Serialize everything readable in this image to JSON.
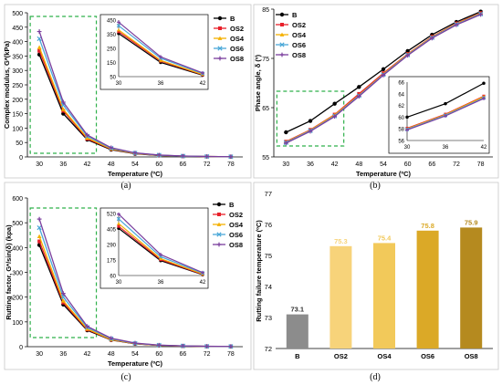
{
  "colors": {
    "B": "#000000",
    "OS2": "#e8202a",
    "OS4": "#f5b000",
    "OS6": "#4aa8d8",
    "OS8": "#7b3f9e",
    "highlight_box": "#2eb04a",
    "bar_B": "#8c8c8c",
    "bar_OS2": "#f7d37a",
    "bar_OS4": "#f2c95a",
    "bar_OS6": "#dba927",
    "bar_OS8": "#b58a1f"
  },
  "legend": [
    "B",
    "OS2",
    "OS4",
    "OS6",
    "OS8"
  ],
  "chart_data": [
    {
      "panel": "(a)",
      "type": "line",
      "x": [
        30,
        36,
        42,
        48,
        54,
        60,
        66,
        72,
        78
      ],
      "xticks": [
        "30",
        "36",
        "42",
        "48",
        "54",
        "60",
        "66",
        "72",
        "78"
      ],
      "xlabel": "Temperature (ºC)",
      "ylabel": "Complex modulus, G*(kPa)",
      "ylim": [
        0,
        500
      ],
      "yticks": [
        "0",
        "50",
        "100",
        "150",
        "200",
        "250",
        "300",
        "350",
        "400",
        "450",
        "500"
      ],
      "series": [
        {
          "name": "B",
          "values": [
            355,
            150,
            60,
            25,
            11,
            5,
            2.5,
            1.3,
            0.7
          ]
        },
        {
          "name": "OS2",
          "values": [
            368,
            160,
            63,
            27,
            12,
            5.5,
            2.7,
            1.4,
            0.8
          ]
        },
        {
          "name": "OS4",
          "values": [
            380,
            165,
            66,
            28,
            12.5,
            5.8,
            2.8,
            1.5,
            0.8
          ]
        },
        {
          "name": "OS6",
          "values": [
            410,
            180,
            72,
            30,
            13.5,
            6.2,
            3,
            1.6,
            0.9
          ]
        },
        {
          "name": "OS8",
          "values": [
            435,
            190,
            76,
            32,
            14,
            6.5,
            3.2,
            1.7,
            0.9
          ]
        }
      ],
      "inset": {
        "x": [
          30,
          36,
          42
        ],
        "xticks": [
          "30",
          "36",
          "42"
        ],
        "ylim": [
          50,
          450
        ],
        "yticks": [
          "50",
          "150",
          "250",
          "350",
          "450"
        ]
      }
    },
    {
      "panel": "(b)",
      "type": "line",
      "x": [
        30,
        36,
        42,
        48,
        54,
        60,
        66,
        72,
        78
      ],
      "xticks": [
        "30",
        "36",
        "42",
        "48",
        "54",
        "60",
        "66",
        "72",
        "78"
      ],
      "xlabel": "Temperature (ºC)",
      "ylabel": "Phase angle, δ (º)",
      "ylim": [
        55,
        85
      ],
      "yticks": [
        "55",
        "65",
        "75",
        "85"
      ],
      "series": [
        {
          "name": "B",
          "values": [
            60,
            62.3,
            65.8,
            69.2,
            72.8,
            76.5,
            79.8,
            82.4,
            84.5
          ]
        },
        {
          "name": "OS2",
          "values": [
            58.1,
            60.5,
            63.6,
            67.8,
            72,
            75.9,
            79.4,
            82.1,
            84.2
          ]
        },
        {
          "name": "OS4",
          "values": [
            58,
            60.4,
            63.5,
            67.5,
            71.8,
            75.8,
            79.3,
            82,
            84.1
          ]
        },
        {
          "name": "OS6",
          "values": [
            57.9,
            60.3,
            63.3,
            67.4,
            71.7,
            75.7,
            79.2,
            81.9,
            84
          ]
        },
        {
          "name": "OS8",
          "values": [
            57.8,
            60.2,
            63.2,
            67.3,
            71.6,
            75.6,
            79.1,
            81.8,
            83.9
          ]
        }
      ],
      "inset": {
        "x": [
          30,
          36,
          42
        ],
        "xticks": [
          "30",
          "36",
          "42"
        ],
        "ylim": [
          56,
          66
        ],
        "yticks": [
          "56",
          "58",
          "60",
          "62",
          "64",
          "66"
        ]
      }
    },
    {
      "panel": "(c)",
      "type": "line",
      "x": [
        30,
        36,
        42,
        48,
        54,
        60,
        66,
        72,
        78
      ],
      "xticks": [
        "30",
        "36",
        "42",
        "48",
        "54",
        "60",
        "66",
        "72",
        "78"
      ],
      "xlabel": "Temperature (ºC)",
      "ylabel": "Rutting factor, G*/sin(δ) (kpa)",
      "ylim": [
        0,
        600
      ],
      "yticks": [
        "0",
        "100",
        "200",
        "300",
        "400",
        "500",
        "600"
      ],
      "series": [
        {
          "name": "B",
          "values": [
            410,
            170,
            66,
            27,
            11.5,
            5,
            2.5,
            1.3,
            0.7
          ]
        },
        {
          "name": "OS2",
          "values": [
            425,
            178,
            69,
            28,
            12,
            5.3,
            2.6,
            1.4,
            0.8
          ]
        },
        {
          "name": "OS4",
          "values": [
            445,
            185,
            72,
            29,
            12.5,
            5.6,
            2.7,
            1.4,
            0.8
          ]
        },
        {
          "name": "OS6",
          "values": [
            480,
            200,
            78,
            32,
            13.5,
            6,
            3,
            1.5,
            0.9
          ]
        },
        {
          "name": "OS8",
          "values": [
            515,
            215,
            82,
            34,
            14.5,
            6.4,
            3.2,
            1.6,
            0.9
          ]
        }
      ],
      "inset": {
        "x": [
          30,
          36,
          42
        ],
        "xticks": [
          "30",
          "36",
          "42"
        ],
        "ylim": [
          60,
          520
        ],
        "yticks": [
          "60",
          "175",
          "290",
          "405",
          "520"
        ]
      }
    },
    {
      "panel": "(d)",
      "type": "bar",
      "categories": [
        "B",
        "OS2",
        "OS4",
        "OS6",
        "OS8"
      ],
      "values": [
        73.1,
        75.3,
        75.4,
        75.8,
        75.9
      ],
      "value_labels": [
        "73.1",
        "75.3",
        "75.4",
        "75.8",
        "75.9"
      ],
      "ylabel": "Rutting failure temperature (ºC)",
      "ylim": [
        72,
        77
      ],
      "yticks": [
        "72",
        "73",
        "74",
        "75",
        "76",
        "77"
      ]
    }
  ]
}
